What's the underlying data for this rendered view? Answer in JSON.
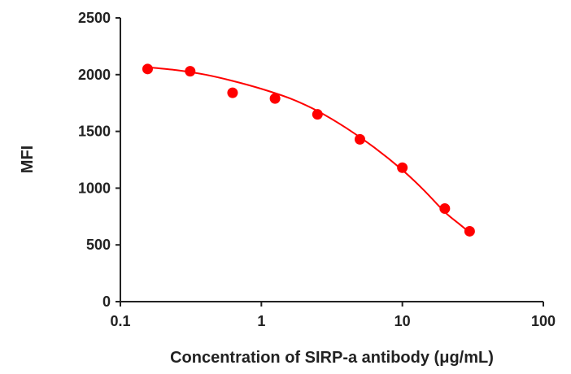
{
  "chart_data": {
    "type": "scatter",
    "xlabel": "Concentration of SIRP-a antibody (μg/mL)",
    "ylabel": "MFI",
    "x": [
      0.156,
      0.3125,
      0.625,
      1.25,
      2.5,
      5,
      10,
      20,
      30
    ],
    "values": [
      2050,
      2030,
      1840,
      1790,
      1650,
      1430,
      1180,
      820,
      620
    ],
    "color": "#ff0000",
    "fit": {
      "color": "#ff0000",
      "x": [
        0.156,
        0.25,
        0.4,
        0.625,
        1,
        1.6,
        2.5,
        4,
        6.3,
        10,
        14,
        20,
        25,
        30
      ],
      "values": [
        2065,
        2040,
        2000,
        1945,
        1875,
        1790,
        1680,
        1530,
        1360,
        1160,
        990,
        790,
        690,
        610
      ]
    },
    "xscale": "log",
    "xlim": [
      0.1,
      100
    ],
    "xticks": [
      0.1,
      1,
      10,
      100
    ],
    "ylim": [
      0,
      2500
    ],
    "yticks": [
      0,
      500,
      1000,
      1500,
      2000,
      2500
    ],
    "grid": false
  }
}
